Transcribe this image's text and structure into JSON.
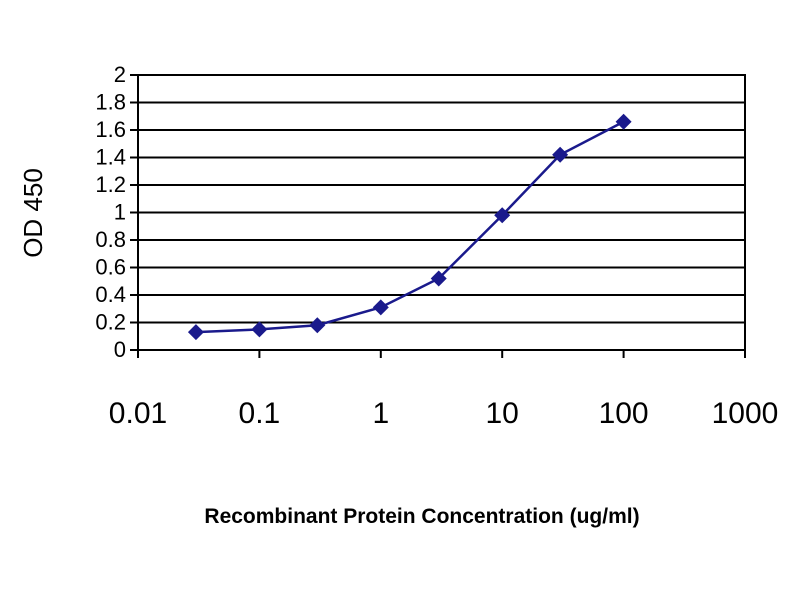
{
  "chart_data": {
    "type": "line",
    "xlabel": "Recombinant Protein Concentration (ug/ml)",
    "ylabel": "OD 450",
    "x_scale": "log",
    "xlim": [
      0.01,
      1000
    ],
    "ylim": [
      0,
      2
    ],
    "x_ticks": [
      "0.01",
      "0.1",
      "1",
      "10",
      "100",
      "1000"
    ],
    "x_tick_values": [
      0.01,
      0.1,
      1,
      10,
      100,
      1000
    ],
    "y_ticks": [
      "0",
      "0.2",
      "0.4",
      "0.6",
      "0.8",
      "1",
      "1.2",
      "1.4",
      "1.6",
      "1.8",
      "2"
    ],
    "y_tick_values": [
      0,
      0.2,
      0.4,
      0.6,
      0.8,
      1,
      1.2,
      1.4,
      1.6,
      1.8,
      2
    ],
    "grid": true,
    "series": [
      {
        "color": "#1a1a8c",
        "marker": "diamond",
        "x": [
          0.03,
          0.1,
          0.3,
          1,
          3,
          10,
          30,
          100
        ],
        "y": [
          0.13,
          0.15,
          0.18,
          0.31,
          0.52,
          0.98,
          1.42,
          1.66
        ]
      }
    ]
  }
}
